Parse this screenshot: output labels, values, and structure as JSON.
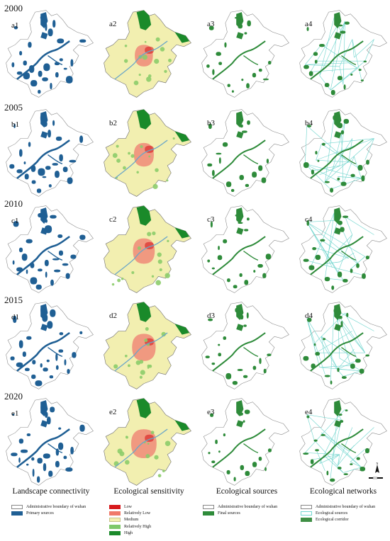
{
  "years": [
    "2000",
    "2005",
    "2010",
    "2015",
    "2020"
  ],
  "rows": [
    {
      "year": "2000",
      "labels": [
        "a1",
        "a2",
        "a3",
        "a4"
      ]
    },
    {
      "year": "2005",
      "labels": [
        "b1",
        "b2",
        "b3",
        "b4"
      ]
    },
    {
      "year": "2010",
      "labels": [
        "c1",
        "c2",
        "c3",
        "c4"
      ]
    },
    {
      "year": "2015",
      "labels": [
        "d1",
        "d2",
        "d3",
        "d4"
      ]
    },
    {
      "year": "2020",
      "labels": [
        "e1",
        "e2",
        "e3",
        "e4"
      ]
    }
  ],
  "columns": [
    {
      "title": "Landscape connectivity",
      "kind": "connectivity"
    },
    {
      "title": "Ecological sensitivity",
      "kind": "sensitivity"
    },
    {
      "title": "Ecological sources",
      "kind": "sources"
    },
    {
      "title": "Ecological networks",
      "kind": "networks"
    }
  ],
  "legends": {
    "connectivity": [
      {
        "label": "Administrative boundary of wuhan",
        "color": "#ffffff",
        "border": "#888888"
      },
      {
        "label": "Primary sources",
        "color": "#1f5f94",
        "border": "#1f5f94"
      }
    ],
    "sensitivity": [
      {
        "label": "Low",
        "color": "#d7191c",
        "border": "#d7191c"
      },
      {
        "label": "Relatively Low",
        "color": "#f07a6a",
        "border": "#f07a6a"
      },
      {
        "label": "Medium",
        "color": "#f4f0b0",
        "border": "#c8c28a"
      },
      {
        "label": "Relatively High",
        "color": "#7ec86a",
        "border": "#7ec86a"
      },
      {
        "label": "High",
        "color": "#1a8a2a",
        "border": "#1a8a2a"
      }
    ],
    "sources": [
      {
        "label": "Administrative boundary of wuhan",
        "color": "#ffffff",
        "border": "#888888"
      },
      {
        "label": "Final sources",
        "color": "#2e8b3a",
        "border": "#2e8b3a"
      }
    ],
    "networks": [
      {
        "label": "Administrative boundary of wuhan",
        "color": "#ffffff",
        "border": "#888888"
      },
      {
        "label": "Ecological sources",
        "color": "#ffffff",
        "border": "#6fd6d0"
      },
      {
        "label": "Ecological corridor",
        "color": "#3f8f45",
        "border": "#3f8f45"
      }
    ]
  },
  "colors": {
    "boundary": "#8a8a8a",
    "connectivity": "#1f5f94",
    "sources": "#2e8b3a",
    "corridor": "#74d6cf",
    "sens_base": "#f2efb0",
    "sens_urban": "#f08a78",
    "sens_low": "#d7191c",
    "sens_high": "#1a8a2a",
    "sens_rel_high": "#8ccc6a"
  },
  "compass": {
    "north": "N"
  }
}
